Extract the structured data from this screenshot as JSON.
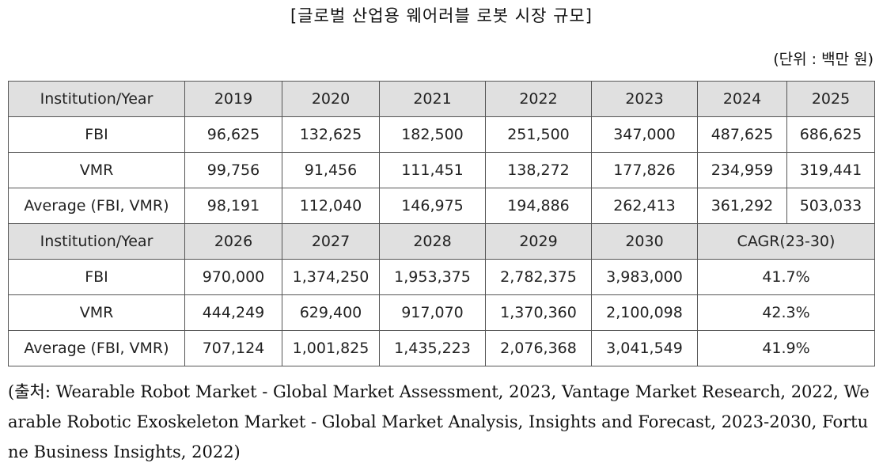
{
  "title": "[글로벌 산업용 웨어러블 로봇 시장 규모]",
  "unit": "(단위 : 백만 원)",
  "table": {
    "header1": [
      "Institution/Year",
      "2019",
      "2020",
      "2021",
      "2022",
      "2023",
      "2024",
      "2025"
    ],
    "rows1": [
      [
        "FBI",
        "96,625",
        "132,625",
        "182,500",
        "251,500",
        "347,000",
        "487,625",
        "686,625"
      ],
      [
        "VMR",
        "99,756",
        "91,456",
        "111,451",
        "138,272",
        "177,826",
        "234,959",
        "319,441"
      ],
      [
        "Average (FBI, VMR)",
        "98,191",
        "112,040",
        "146,975",
        "194,886",
        "262,413",
        "361,292",
        "503,033"
      ]
    ],
    "header2": [
      "Institution/Year",
      "2026",
      "2027",
      "2028",
      "2029",
      "2030",
      "CAGR(23-30)"
    ],
    "rows2": [
      [
        "FBI",
        "970,000",
        "1,374,250",
        "1,953,375",
        "2,782,375",
        "3,983,000",
        "41.7%"
      ],
      [
        "VMR",
        "444,249",
        "629,400",
        "917,070",
        "1,370,360",
        "2,100,098",
        "42.3%"
      ],
      [
        "Average (FBI, VMR)",
        "707,124",
        "1,001,825",
        "1,435,223",
        "2,076,368",
        "3,041,549",
        "41.9%"
      ]
    ]
  },
  "source": "(출처: Wearable Robot Market - Global Market Assessment, 2023, Vantage Market Research, 2022, Wearable Robotic Exoskeleton Market - Global Market Analysis, Insights and Forecast, 2023-2030, Fortune Business Insights, 2022)"
}
